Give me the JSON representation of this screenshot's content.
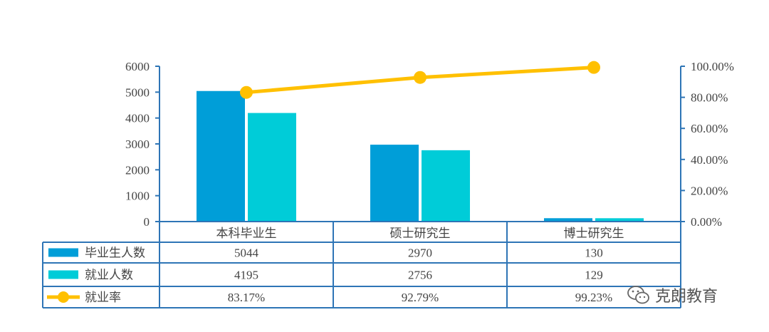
{
  "chart_data": {
    "type": "bar",
    "categories": [
      "本科毕业生",
      "硕士研究生",
      "博士研究生"
    ],
    "series": [
      {
        "name": "毕业生人数",
        "values": [
          5044,
          2970,
          130
        ],
        "color": "#009ed8",
        "axis": "left",
        "kind": "bar"
      },
      {
        "name": "就业人数",
        "values": [
          4195,
          2756,
          129
        ],
        "color": "#00ccd8",
        "axis": "left",
        "kind": "bar"
      },
      {
        "name": "就业率",
        "values": [
          83.17,
          92.79,
          99.23
        ],
        "color": "#ffc000",
        "axis": "right",
        "kind": "line",
        "labels": [
          "83.17%",
          "92.79%",
          "99.23%"
        ]
      }
    ],
    "table_rows": [
      [
        "5044",
        "2970",
        "130"
      ],
      [
        "4195",
        "2756",
        "129"
      ],
      [
        "83.17%",
        "92.79%",
        "99.23%"
      ]
    ],
    "ylim_left": [
      0,
      6000
    ],
    "yticks_left": [
      "0",
      "1000",
      "2000",
      "3000",
      "4000",
      "5000",
      "6000"
    ],
    "ylim_right": [
      0,
      100
    ],
    "yticks_right": [
      "0.00%",
      "20.00%",
      "40.00%",
      "60.00%",
      "80.00%",
      "100.00%"
    ],
    "grid": false,
    "legend": "data-table",
    "axis_color": "#2e75b6"
  },
  "watermark": {
    "text": "克朗教育",
    "icon": "wechat-icon"
  }
}
